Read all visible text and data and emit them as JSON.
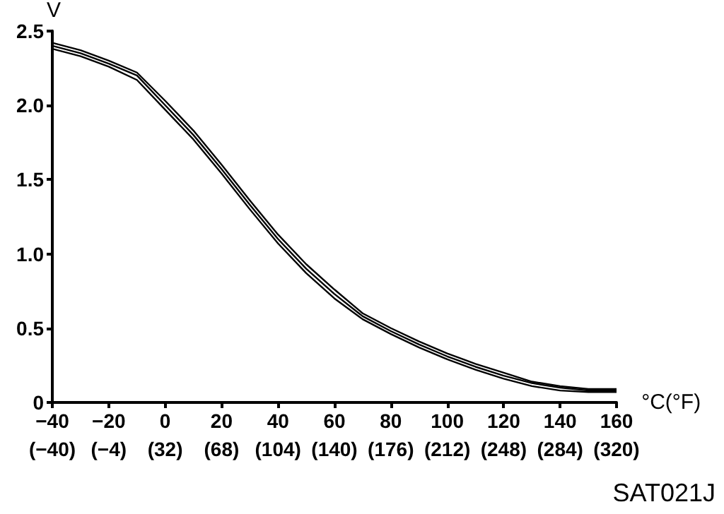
{
  "chart_data": {
    "type": "line",
    "xlabel": "°C(°F)",
    "ylabel": "V",
    "x": [
      -40,
      -30,
      -20,
      -10,
      0,
      10,
      20,
      30,
      40,
      50,
      60,
      70,
      80,
      90,
      100,
      110,
      120,
      130,
      140,
      150,
      160
    ],
    "series": [
      {
        "color": "#000000",
        "values": [
          2.42,
          2.37,
          2.3,
          2.22,
          2.03,
          1.83,
          1.6,
          1.36,
          1.13,
          0.93,
          0.76,
          0.6,
          0.5,
          0.41,
          0.33,
          0.26,
          0.2,
          0.14,
          0.11,
          0.09,
          0.09
        ]
      },
      {
        "color": "#000000",
        "values": [
          2.4,
          2.35,
          2.28,
          2.2,
          2.0,
          1.8,
          1.57,
          1.33,
          1.1,
          0.9,
          0.73,
          0.58,
          0.48,
          0.39,
          0.31,
          0.24,
          0.18,
          0.13,
          0.1,
          0.08,
          0.08
        ]
      },
      {
        "color": "#000000",
        "values": [
          2.38,
          2.33,
          2.26,
          2.17,
          1.97,
          1.77,
          1.54,
          1.3,
          1.07,
          0.87,
          0.7,
          0.56,
          0.46,
          0.37,
          0.29,
          0.22,
          0.16,
          0.11,
          0.08,
          0.07,
          0.07
        ]
      }
    ],
    "xlim": [
      -40,
      160
    ],
    "xticks": [
      -40,
      -20,
      0,
      20,
      40,
      60,
      80,
      100,
      120,
      140,
      160
    ],
    "x2lim": [
      -40,
      320
    ],
    "x2ticks": [
      {
        "value": -40,
        "label": "(−40)"
      },
      {
        "value": -4,
        "label": "(−4)"
      },
      {
        "value": 32,
        "label": "(32)"
      },
      {
        "value": 68,
        "label": "(68)"
      },
      {
        "value": 104,
        "label": "(104)"
      },
      {
        "value": 140,
        "label": "(140)"
      },
      {
        "value": 176,
        "label": "(176)"
      },
      {
        "value": 212,
        "label": "(212)"
      },
      {
        "value": 248,
        "label": "(248)"
      },
      {
        "value": 284,
        "label": "(284)"
      },
      {
        "value": 320,
        "label": "(320)"
      }
    ],
    "ylim": [
      0,
      2.5
    ],
    "yticks": [
      0,
      {
        "value": 0.5,
        "label": "0.5"
      },
      {
        "value": 1,
        "label": "1.0"
      },
      {
        "value": 1.5,
        "label": "1.5"
      },
      {
        "value": 2,
        "label": "2.0"
      },
      {
        "value": 2.5,
        "label": "2.5"
      }
    ],
    "grid": false,
    "marker": "none",
    "line_style": "solid",
    "annotations": [
      "SAT021J"
    ]
  }
}
